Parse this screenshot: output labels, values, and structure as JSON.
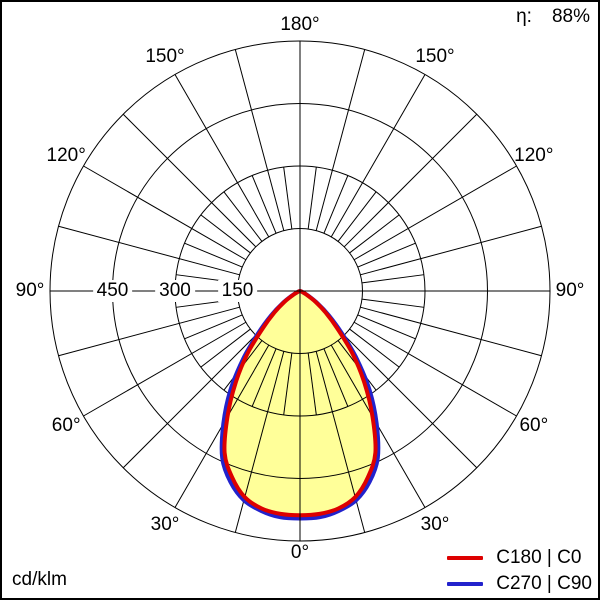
{
  "header": {
    "efficiency_label": "η:",
    "efficiency_value": "88%"
  },
  "footer": {
    "unit_label": "cd/klm"
  },
  "legend": {
    "items": [
      {
        "label": "C180 | C0",
        "color": "#dd0000"
      },
      {
        "label": "C270 | C90",
        "color": "#2222cc"
      }
    ]
  },
  "chart_data": {
    "type": "polar",
    "subtype": "photometric-light-distribution",
    "unit": "cd/klm",
    "efficiency_percent": 88,
    "r_max": 600,
    "radial_circles": [
      150,
      300,
      450,
      600
    ],
    "radial_tick_labels": [
      {
        "value": 150,
        "label": "150"
      },
      {
        "value": 300,
        "label": "300"
      },
      {
        "value": 450,
        "label": "450"
      }
    ],
    "angle_ticks": [
      {
        "gamma": 0,
        "label": "0°"
      },
      {
        "gamma": 30,
        "label": "30°"
      },
      {
        "gamma": 60,
        "label": "60°"
      },
      {
        "gamma": 90,
        "label": "90°"
      },
      {
        "gamma": 120,
        "label": "120°"
      },
      {
        "gamma": 150,
        "label": "150°"
      },
      {
        "gamma": 180,
        "label": "180°"
      }
    ],
    "angular_grid": {
      "coarse_step_deg": 15,
      "fine_step_deg": 7.5,
      "fine_extent_value": 300,
      "inner_start_value": 150
    },
    "fill_color": "#ffff99",
    "grid_color": "#000000",
    "series": [
      {
        "name": "C180 | C0",
        "color": "#dd0000",
        "gamma_deg": [
          0,
          5,
          10,
          15,
          20,
          25,
          30,
          35,
          40,
          45,
          50,
          55,
          60,
          65
        ],
        "intensity_cd_klm": [
          538,
          537,
          530,
          512,
          476,
          428,
          348,
          270,
          196,
          126,
          80,
          46,
          20,
          7
        ]
      },
      {
        "name": "C270 | C90",
        "color": "#2222cc",
        "gamma_deg": [
          0,
          5,
          10,
          15,
          20,
          25,
          30,
          35,
          40,
          45,
          50,
          55,
          60,
          65
        ],
        "intensity_cd_klm": [
          546,
          545,
          536,
          520,
          488,
          442,
          368,
          292,
          212,
          140,
          90,
          52,
          24,
          9
        ]
      }
    ]
  }
}
